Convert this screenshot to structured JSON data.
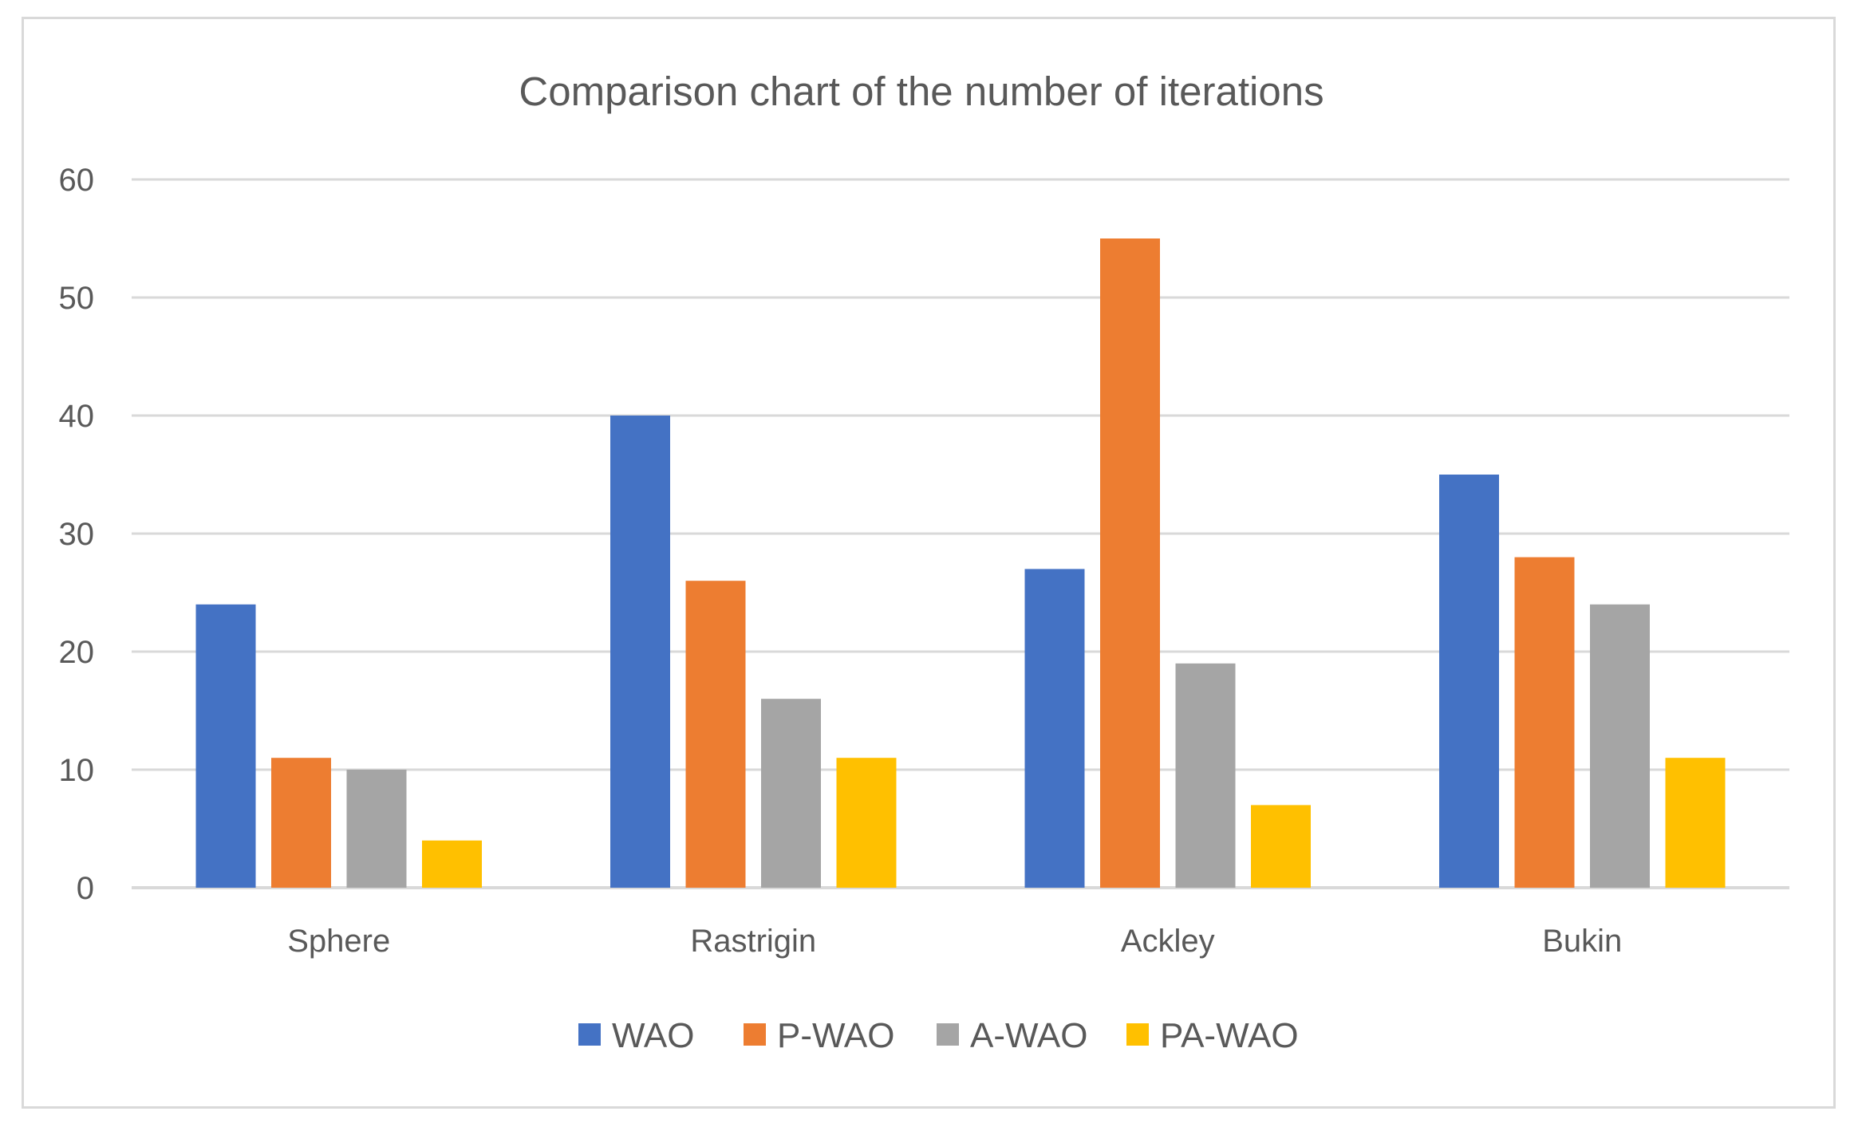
{
  "chart_data": {
    "type": "bar",
    "title": "Comparison chart of the number of iterations",
    "xlabel": "",
    "ylabel": "",
    "categories": [
      "Sphere",
      "Rastrigin",
      "Ackley",
      "Bukin"
    ],
    "series": [
      {
        "name": "WAO",
        "color": "#4472c4",
        "values": [
          24,
          40,
          27,
          35
        ]
      },
      {
        "name": "P-WAO",
        "color": "#ed7d31",
        "values": [
          11,
          26,
          55,
          28
        ]
      },
      {
        "name": "A-WAO",
        "color": "#a5a5a5",
        "values": [
          10,
          16,
          19,
          24
        ]
      },
      {
        "name": "PA-WAO",
        "color": "#ffc000",
        "values": [
          4,
          11,
          7,
          11
        ]
      }
    ],
    "ylim": [
      0,
      60
    ],
    "yticks": [
      0,
      10,
      20,
      30,
      40,
      50,
      60
    ],
    "ytick_labels": [
      "0",
      "10",
      "20",
      "30",
      "40",
      "50",
      "60"
    ],
    "grid": true,
    "legend_position": "bottom"
  }
}
